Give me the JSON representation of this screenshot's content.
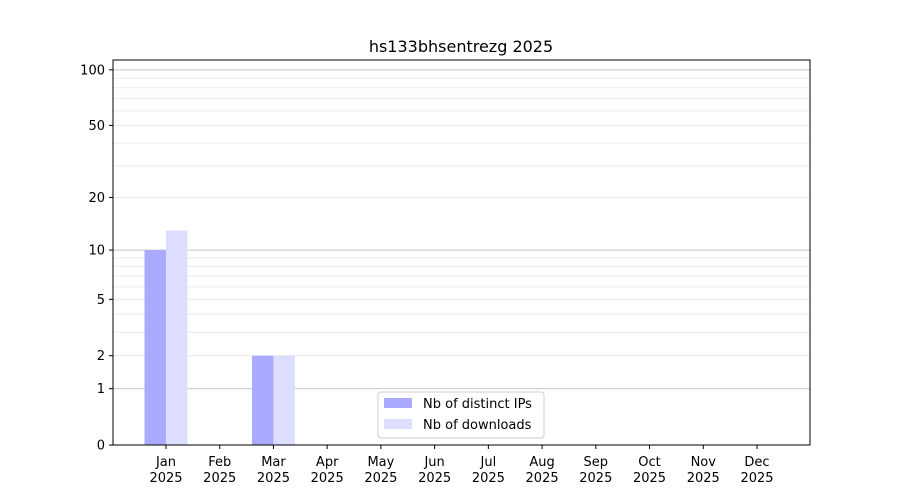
{
  "chart_data": {
    "type": "bar",
    "title": "hs133bhsentrezg 2025",
    "xlabel": "",
    "ylabel": "",
    "y_scale": "log10(1+y)",
    "ylim": [
      0,
      113
    ],
    "y_ticks": [
      0,
      1,
      2,
      5,
      10,
      20,
      50,
      100
    ],
    "categories": [
      "Jan\n2025",
      "Feb\n2025",
      "Mar\n2025",
      "Apr\n2025",
      "May\n2025",
      "Jun\n2025",
      "Jul\n2025",
      "Aug\n2025",
      "Sep\n2025",
      "Oct\n2025",
      "Nov\n2025",
      "Dec\n2025"
    ],
    "series": [
      {
        "name": "Nb of distinct IPs",
        "color": "#aaaaff",
        "values": [
          10,
          0,
          2,
          0,
          0,
          0,
          0,
          0,
          0,
          0,
          0,
          0
        ]
      },
      {
        "name": "Nb of downloads",
        "color": "#ddddff",
        "values": [
          13,
          0,
          2,
          0,
          0,
          0,
          0,
          0,
          0,
          0,
          0,
          0
        ]
      }
    ],
    "grid": true,
    "legend_position": "lower-center"
  }
}
